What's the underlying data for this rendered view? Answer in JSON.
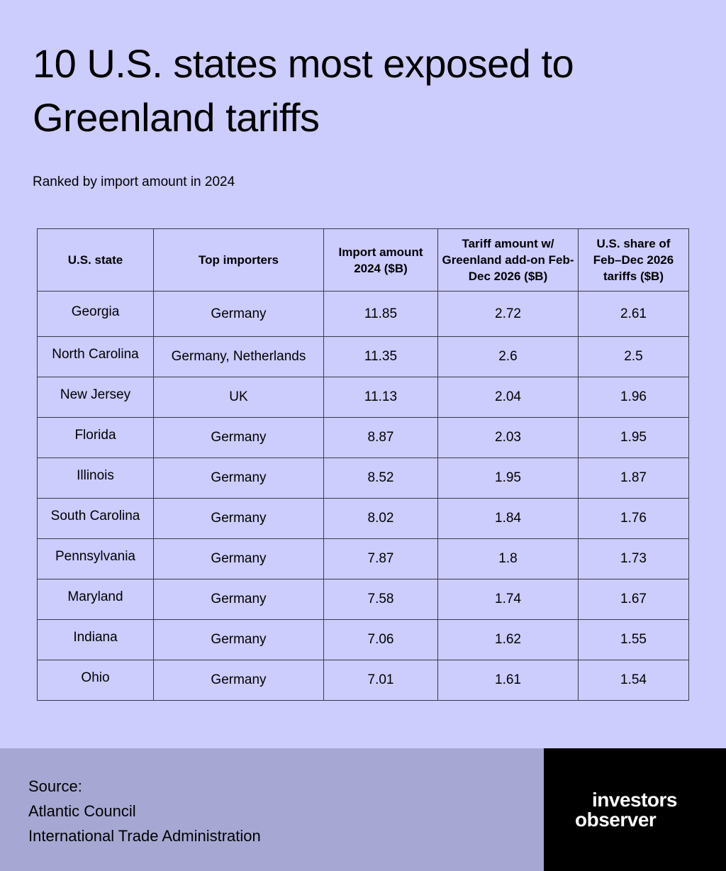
{
  "title": "10 U.S. states most exposed to Greenland tariffs",
  "subtitle": "Ranked by import amount in 2024",
  "chart_data": {
    "type": "table",
    "columns": [
      "U.S. state",
      "Top importers",
      "Import amount 2024 ($B)",
      "Tariff amount w/ Greenland add-on Feb-Dec 2026 ($B)",
      "U.S. share of Feb–Dec 2026 tariffs ($B)"
    ],
    "rows": [
      [
        "Georgia",
        "Germany",
        "11.85",
        "2.72",
        "2.61"
      ],
      [
        "North Carolina",
        "Germany, Netherlands",
        "11.35",
        "2.6",
        "2.5"
      ],
      [
        "New Jersey",
        "UK",
        "11.13",
        "2.04",
        "1.96"
      ],
      [
        "Florida",
        "Germany",
        "8.87",
        "2.03",
        "1.95"
      ],
      [
        "Illinois",
        "Germany",
        "8.52",
        "1.95",
        "1.87"
      ],
      [
        "South Carolina",
        "Germany",
        "8.02",
        "1.84",
        "1.76"
      ],
      [
        "Pennsylvania",
        "Germany",
        "7.87",
        "1.8",
        "1.73"
      ],
      [
        "Maryland",
        "Germany",
        "7.58",
        "1.74",
        "1.67"
      ],
      [
        "Indiana",
        "Germany",
        "7.06",
        "1.62",
        "1.55"
      ],
      [
        "Ohio",
        "Germany",
        "7.01",
        "1.61",
        "1.54"
      ]
    ]
  },
  "source": {
    "label": "Source:",
    "lines": [
      "Atlantic Council",
      "International Trade Administration"
    ]
  },
  "logo": {
    "line1": "investors",
    "line2": "observer"
  },
  "colors": {
    "background": "#ccccfd",
    "footer": "#a6a8d3",
    "logo_bg": "#000000"
  }
}
